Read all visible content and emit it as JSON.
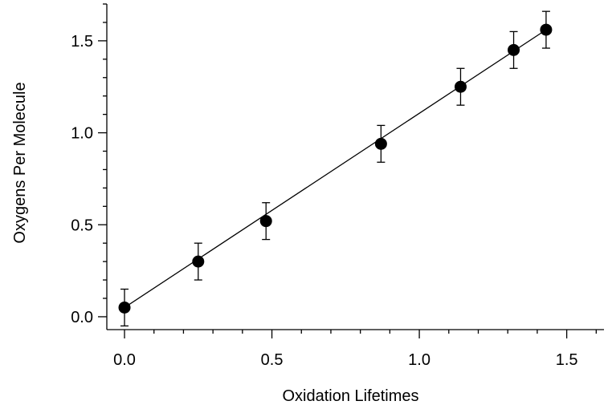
{
  "chart_data": {
    "type": "scatter",
    "title": "",
    "xlabel": "Oxidation Lifetimes",
    "ylabel": "Oxygens Per Molecule",
    "xlim": [
      -0.06,
      1.64
    ],
    "ylim": [
      -0.07,
      1.7
    ],
    "x_ticks": [
      {
        "value": 0.0,
        "label": "0.0"
      },
      {
        "value": 0.5,
        "label": "0.5"
      },
      {
        "value": 1.0,
        "label": "1.0"
      },
      {
        "value": 1.5,
        "label": "1.5"
      }
    ],
    "y_ticks": [
      {
        "value": 0.0,
        "label": "0.0"
      },
      {
        "value": 0.5,
        "label": "0.5"
      },
      {
        "value": 1.0,
        "label": "1.0"
      },
      {
        "value": 1.5,
        "label": "1.5"
      }
    ],
    "x_minor_step": 0.1,
    "y_minor_step": 0.1,
    "grid": false,
    "series": [
      {
        "x": [
          0.0,
          0.25,
          0.48,
          0.87,
          1.14,
          1.32,
          1.43
        ],
        "y": [
          0.05,
          0.3,
          0.52,
          0.94,
          1.25,
          1.45,
          1.56
        ],
        "error": [
          0.1,
          0.1,
          0.1,
          0.1,
          0.1,
          0.1,
          0.1
        ]
      }
    ],
    "fit_line": {
      "x": [
        0.0,
        1.43
      ],
      "y": [
        0.05,
        1.56
      ]
    },
    "colors": {
      "marker": "#000000",
      "line": "#000000"
    }
  }
}
